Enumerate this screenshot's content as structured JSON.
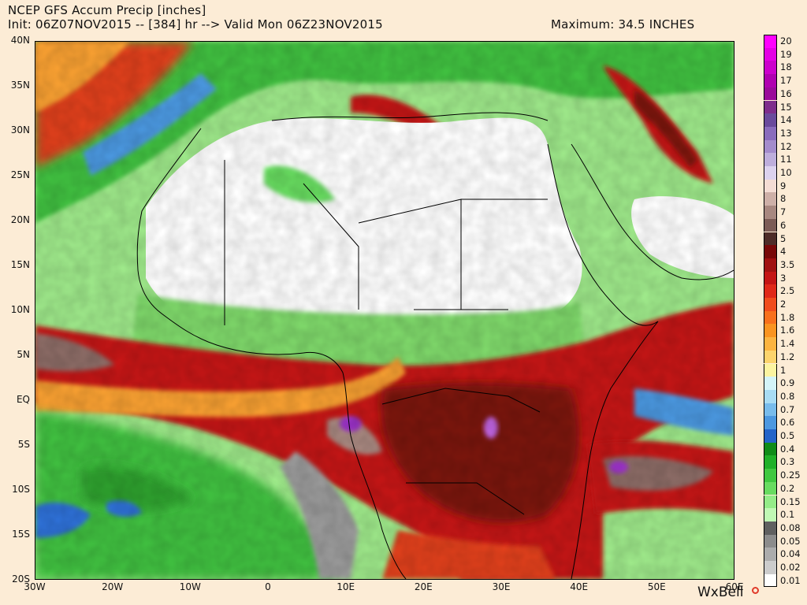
{
  "header": {
    "title": "NCEP GFS Accum Precip [inches]",
    "init_line": "Init: 06Z07NOV2015 -- [384] hr --> Valid Mon 06Z23NOV2015",
    "maximum": "Maximum: 34.5 INCHES"
  },
  "map": {
    "lat_labels": [
      "40N",
      "35N",
      "30N",
      "25N",
      "20N",
      "15N",
      "10N",
      "5N",
      "EQ",
      "5S",
      "10S",
      "15S",
      "20S"
    ],
    "lon_labels": [
      "30W",
      "20W",
      "10W",
      "0",
      "10E",
      "20E",
      "30E",
      "40E",
      "50E",
      "60E"
    ],
    "extent": {
      "lon_min": -30,
      "lon_max": 60,
      "lat_min": -20,
      "lat_max": 40
    },
    "colors": {
      "ocean_light_green": "#9ee88a",
      "ocean_green": "#3fbf3f",
      "blue_patch": "#2f6fd6",
      "dry_land": "#ffffff",
      "heavy_red": "#b31c14",
      "dark_red": "#7a1410",
      "orange": "#f08a24",
      "gray": "#8c8c8c",
      "purple": "#9b30c8"
    }
  },
  "legend": {
    "entries": [
      {
        "label": "20",
        "color": "#ff00ff"
      },
      {
        "label": "19",
        "color": "#e400e4"
      },
      {
        "label": "18",
        "color": "#cc00cc"
      },
      {
        "label": "17",
        "color": "#b000b0"
      },
      {
        "label": "16",
        "color": "#9a0a9a"
      },
      {
        "label": "15",
        "color": "#7e2d8c"
      },
      {
        "label": "14",
        "color": "#6a4a9c"
      },
      {
        "label": "13",
        "color": "#8a6cbc"
      },
      {
        "label": "12",
        "color": "#a48ccc"
      },
      {
        "label": "11",
        "color": "#beaedc"
      },
      {
        "label": "10",
        "color": "#dcd2ee"
      },
      {
        "label": "9",
        "color": "#f4dcd4"
      },
      {
        "label": "8",
        "color": "#ceb0a8"
      },
      {
        "label": "7",
        "color": "#a88880"
      },
      {
        "label": "6",
        "color": "#7c5c56"
      },
      {
        "label": "5",
        "color": "#4e2c28"
      },
      {
        "label": "4",
        "color": "#780808"
      },
      {
        "label": "3.5",
        "color": "#a01010"
      },
      {
        "label": "3",
        "color": "#c41414"
      },
      {
        "label": "2.5",
        "color": "#e02818"
      },
      {
        "label": "2",
        "color": "#f04c1c"
      },
      {
        "label": "1.8",
        "color": "#f8701c"
      },
      {
        "label": "1.6",
        "color": "#fa9420"
      },
      {
        "label": "1.4",
        "color": "#fcb440"
      },
      {
        "label": "1.2",
        "color": "#fcd46c"
      },
      {
        "label": "1",
        "color": "#fcf4a0"
      },
      {
        "label": "0.9",
        "color": "#d4f4f8"
      },
      {
        "label": "0.8",
        "color": "#a8dcf4"
      },
      {
        "label": "0.7",
        "color": "#78bcec"
      },
      {
        "label": "0.6",
        "color": "#4c98e0"
      },
      {
        "label": "0.5",
        "color": "#2464c8"
      },
      {
        "label": "0.4",
        "color": "#108c18"
      },
      {
        "label": "0.3",
        "color": "#20b028"
      },
      {
        "label": "0.25",
        "color": "#40c840"
      },
      {
        "label": "0.2",
        "color": "#68dc60"
      },
      {
        "label": "0.15",
        "color": "#94ec88"
      },
      {
        "label": "0.1",
        "color": "#c0f8b4"
      },
      {
        "label": "0.08",
        "color": "#606060"
      },
      {
        "label": "0.05",
        "color": "#8c8c8c"
      },
      {
        "label": "0.04",
        "color": "#acacac"
      },
      {
        "label": "0.02",
        "color": "#cccccc"
      },
      {
        "label": "0.01",
        "color": "#ffffff"
      }
    ]
  },
  "branding": {
    "logo_text": "WxBell"
  }
}
